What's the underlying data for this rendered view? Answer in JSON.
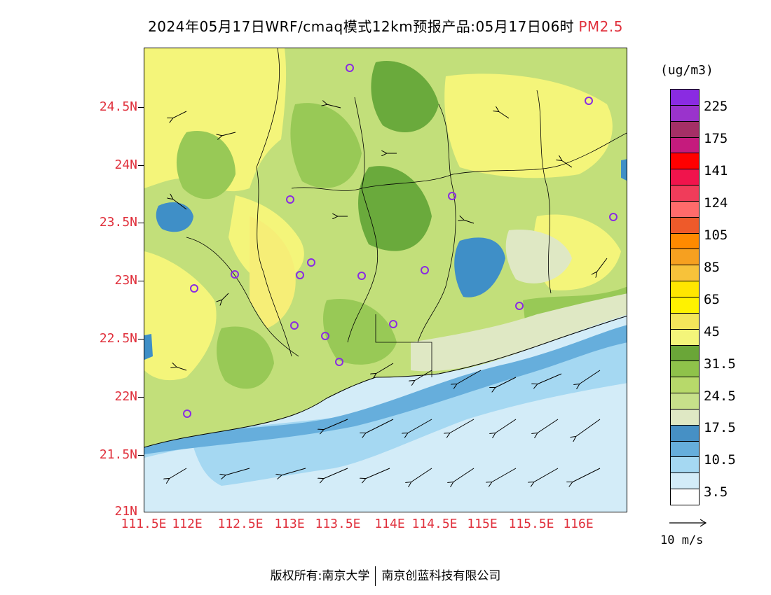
{
  "title": {
    "text": "2024年05月17日WRF/cmaq模式12km预报产品:05月17日06时",
    "variable": "PM2.5"
  },
  "map": {
    "lat_labels": [
      "24.5N",
      "24N",
      "23.5N",
      "23N",
      "22.5N",
      "22N",
      "21.5N",
      "21N"
    ],
    "lon_labels": [
      "111.5E",
      "112E",
      "112.5E",
      "113E",
      "113.5E",
      "114E",
      "114.5E",
      "115E",
      "115.5E",
      "116E"
    ],
    "lat_range": [
      21,
      25
    ],
    "lon_range": [
      111.5,
      116.4
    ],
    "field_colors": {
      "deep_blue": "#3f8fc7",
      "mid_blue": "#66aedc",
      "light_blue": "#a5d8f2",
      "pale_blue": "#d3ecf8",
      "pale_green": "#dfe8c4",
      "light_green": "#c2df7a",
      "green": "#98c956",
      "dark_green": "#6aaa3c",
      "yellow": "#f4f57a",
      "light_yellow": "#f6ee77",
      "gold": "#f5e65a"
    },
    "station_marker_color": "#8a2be2"
  },
  "colorbar": {
    "unit": "(ug/m3)",
    "colors_top_to_bottom": [
      "#8a2be2",
      "#9a33cc",
      "#a52f66",
      "#c51b7d",
      "#ff0000",
      "#f0144c",
      "#f03c5a",
      "#ff6b6b",
      "#ee5a2a",
      "#ff8a00",
      "#f6a020",
      "#f7c23a",
      "#ffe600",
      "#fff200",
      "#f4e65a",
      "#f4f57a",
      "#6aa638",
      "#8fc24a",
      "#b7d96a",
      "#c7e08a",
      "#dfe8c4",
      "#4690c5",
      "#66aedc",
      "#a5d8f2",
      "#d3ecf8",
      "#ffffff"
    ],
    "labels": [
      "225",
      "175",
      "141",
      "124",
      "105",
      "85",
      "65",
      "45",
      "31.5",
      "24.5",
      "17.5",
      "10.5",
      "3.5"
    ]
  },
  "wind_legend": {
    "label": "10 m/s"
  },
  "footer": {
    "left": "版权所有:南京大学",
    "right": "南京创蓝科技有限公司"
  }
}
